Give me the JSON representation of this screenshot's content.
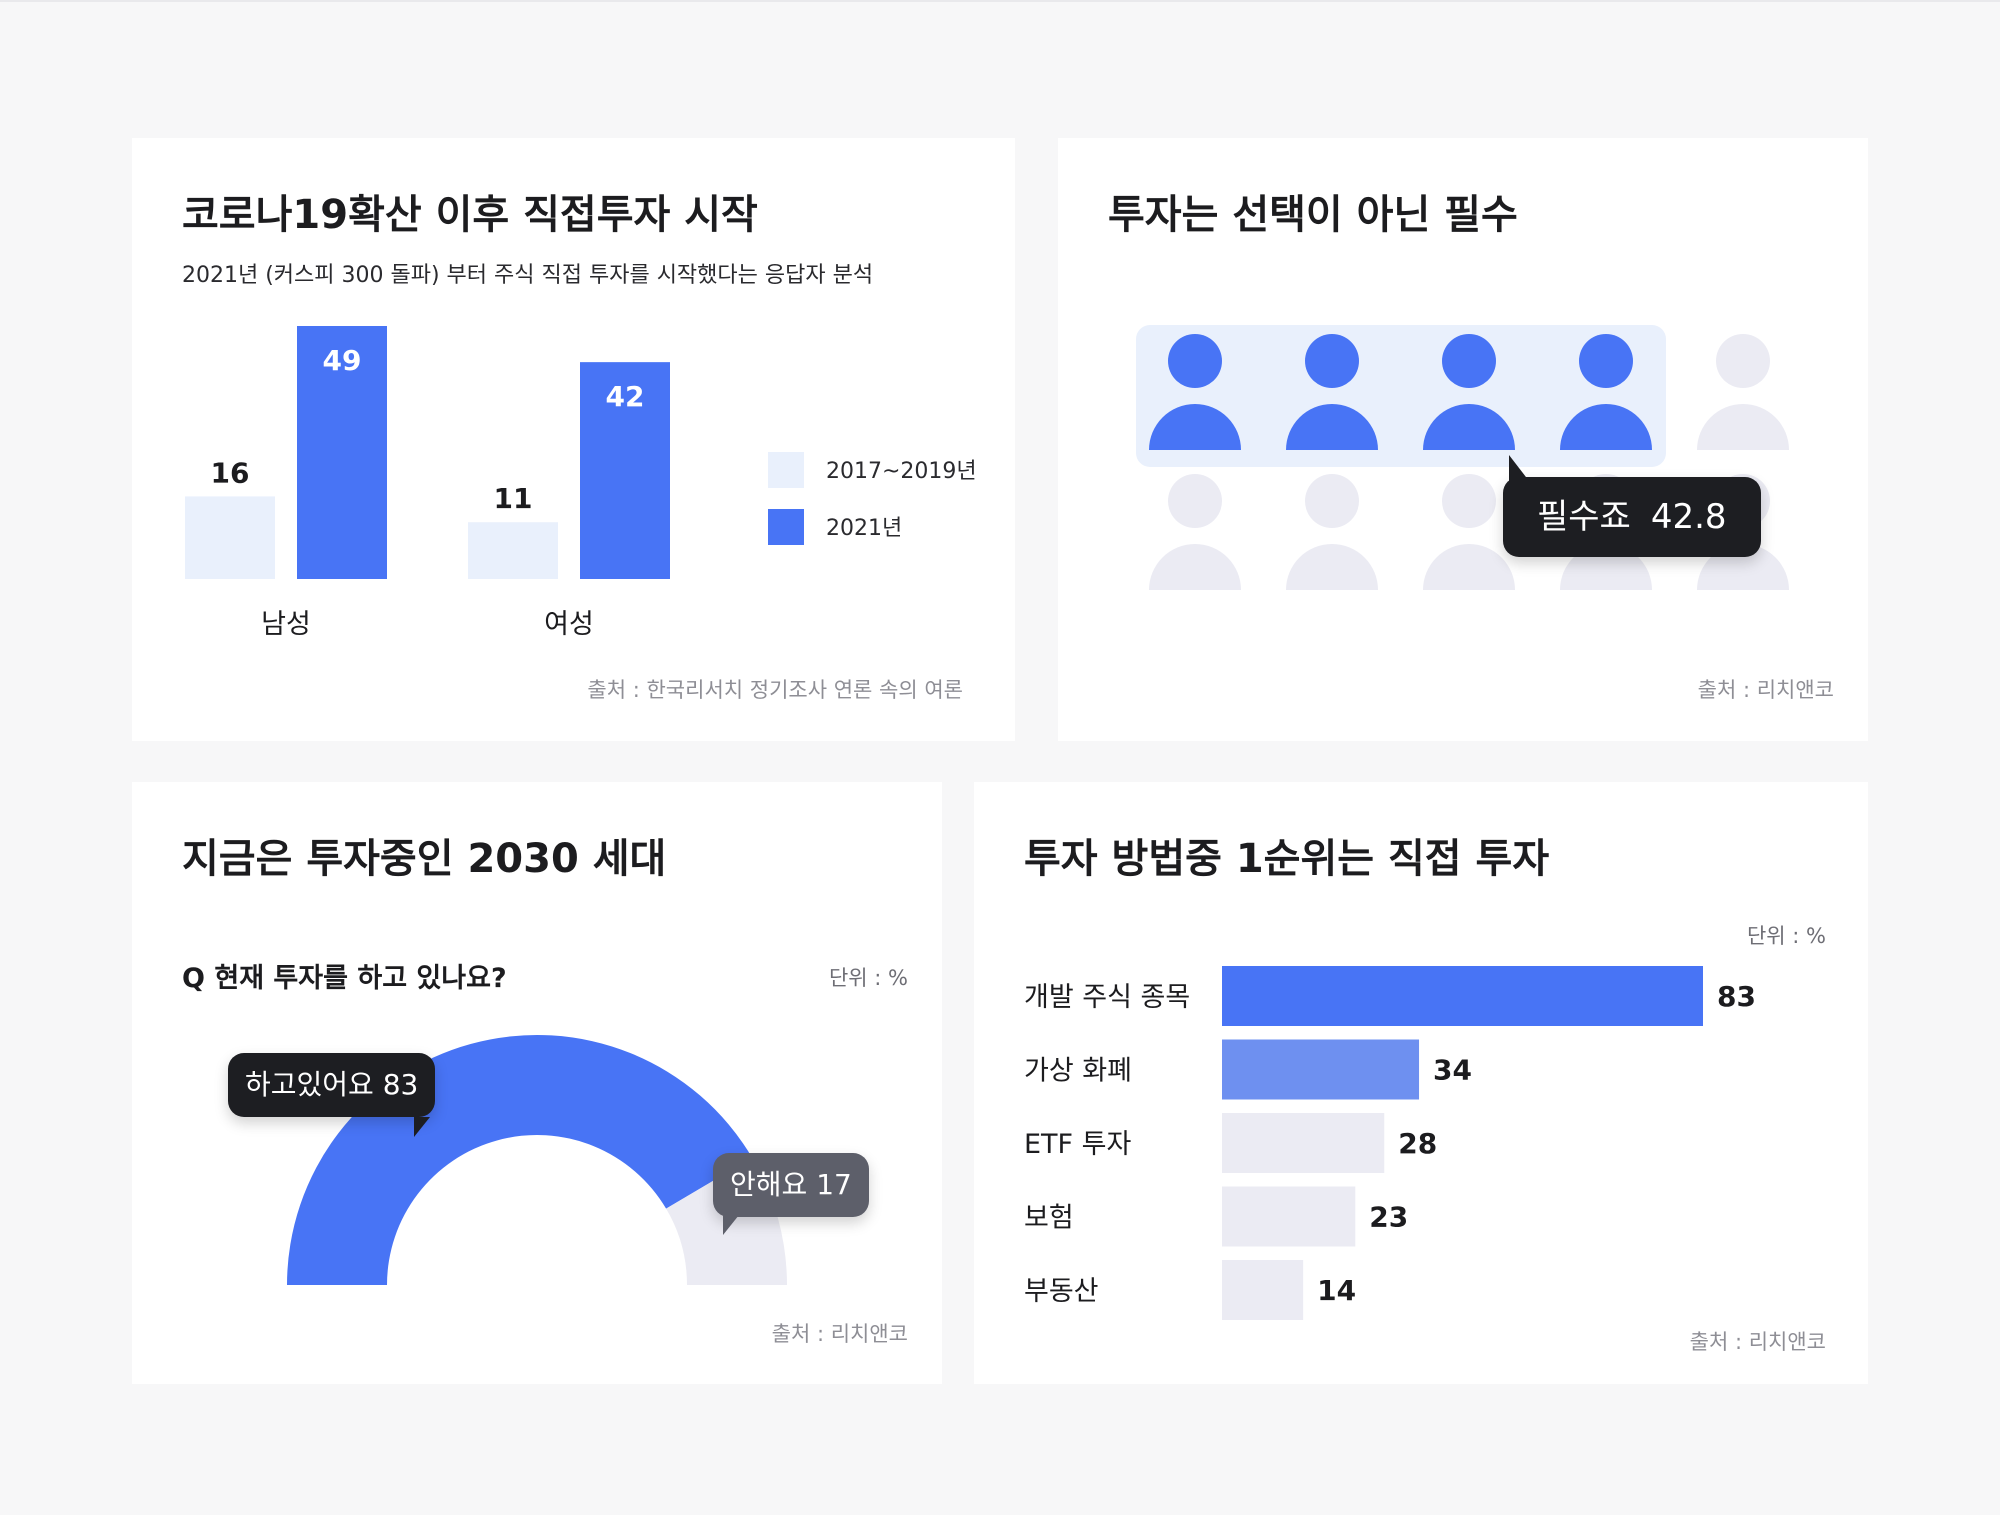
{
  "cards": [
    {
      "title": "코로나19확산 이후 직접투자 시작",
      "subtitle": "2021년 (커스피 300 돌파) 부터 주식 직접 투자를 시작했다는 응답자 분석",
      "source": "출처 : 한국리서치 정기조사 연론 속의 여론"
    },
    {
      "title": "투자는 선택이 아닌 필수",
      "source": "출처 : 리치앤코",
      "tooltip": {
        "label": "필수죠",
        "value": "42.8"
      }
    },
    {
      "title": "지금은 투자중인 2030 세대",
      "question": "Q 현재 투자를 하고 있나요?",
      "unit": "단위 : %",
      "source": "출처 : 리치앤코",
      "tooltips": [
        {
          "label": "하고있어요",
          "value": "83"
        },
        {
          "label": "안해요",
          "value": "17"
        }
      ]
    },
    {
      "title": "투자 방법중 1순위는 직접 투자",
      "unit": "단위 : %",
      "source": "출처 : 리치앤코"
    }
  ],
  "colors": {
    "accent": "#4874f5",
    "accent_mid": "#6e90f0",
    "light_bar": "#e9f0fc",
    "light_grey": "#ebebf3",
    "dark_tooltip": "#1d1e22",
    "grey_tooltip": "#5d5f6a"
  },
  "icons": {
    "person": "person-icon"
  },
  "chart_data": [
    {
      "type": "bar",
      "title": "코로나19확산 이후 직접투자 시작",
      "categories": [
        "남성",
        "여성"
      ],
      "series": [
        {
          "name": "2017~2019년",
          "values": [
            16,
            11
          ]
        },
        {
          "name": "2021년",
          "values": [
            49,
            42
          ]
        }
      ],
      "ylim": [
        0,
        49
      ],
      "legend": "right"
    },
    {
      "type": "pictogram",
      "title": "투자는 선택이 아닌 필수",
      "total_icons": 10,
      "highlighted_icons": 4,
      "label": "필수죠",
      "value": 42.8
    },
    {
      "type": "pie",
      "subtype": "semi-donut",
      "title": "지금은 투자중인 2030 세대",
      "labels": [
        "하고있어요",
        "안해요"
      ],
      "values": [
        83,
        17
      ]
    },
    {
      "type": "bar",
      "orientation": "horizontal",
      "title": "투자 방법중 1순위는 직접 투자",
      "categories": [
        "개발 주식 종목",
        "가상 화폐",
        "ETF 투자",
        "보험",
        "부동산"
      ],
      "values": [
        83,
        34,
        28,
        23,
        14
      ],
      "xlim": [
        0,
        83
      ]
    }
  ]
}
